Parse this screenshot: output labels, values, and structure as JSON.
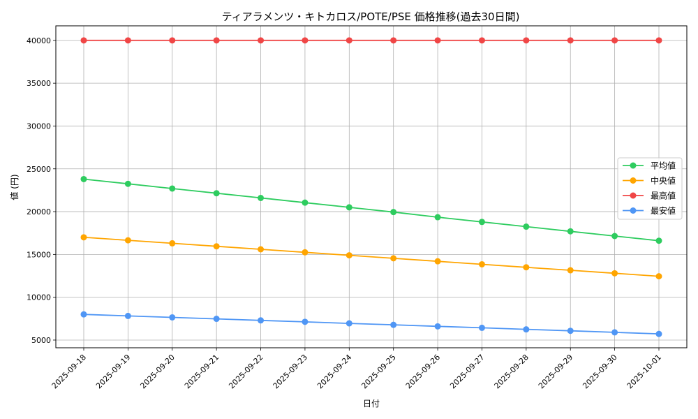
{
  "chart_data": {
    "type": "line",
    "title": "ティアラメンツ・キトカロス/POTE/PSE 価格推移(過去30日間)",
    "xlabel": "日付",
    "ylabel": "値 (円)",
    "categories": [
      "2025-09-18",
      "2025-09-19",
      "2025-09-20",
      "2025-09-21",
      "2025-09-22",
      "2025-09-23",
      "2025-09-24",
      "2025-09-25",
      "2025-09-26",
      "2025-09-27",
      "2025-09-28",
      "2025-09-29",
      "2025-09-30",
      "2025-10-01"
    ],
    "ylim": [
      4100,
      41700
    ],
    "yticks": [
      5000,
      10000,
      15000,
      20000,
      25000,
      30000,
      35000,
      40000
    ],
    "grid": true,
    "legend_position": "center-right",
    "series": [
      {
        "name": "平均値",
        "color": "#2ecc5f",
        "values": [
          23800,
          23250,
          22700,
          22150,
          21600,
          21050,
          20500,
          19950,
          19350,
          18800,
          18250,
          17700,
          17150,
          16600
        ]
      },
      {
        "name": "中央値",
        "color": "#ffa500",
        "values": [
          17000,
          16650,
          16300,
          15950,
          15600,
          15250,
          14900,
          14550,
          14200,
          13850,
          13500,
          13150,
          12800,
          12450
        ]
      },
      {
        "name": "最高値",
        "color": "#f04646",
        "values": [
          40000,
          40000,
          40000,
          40000,
          40000,
          40000,
          40000,
          40000,
          40000,
          40000,
          40000,
          40000,
          40000,
          40000
        ]
      },
      {
        "name": "最安値",
        "color": "#4f96f5",
        "values": [
          8000,
          7820,
          7650,
          7480,
          7300,
          7130,
          6950,
          6780,
          6600,
          6430,
          6250,
          6080,
          5900,
          5720
        ]
      }
    ]
  }
}
